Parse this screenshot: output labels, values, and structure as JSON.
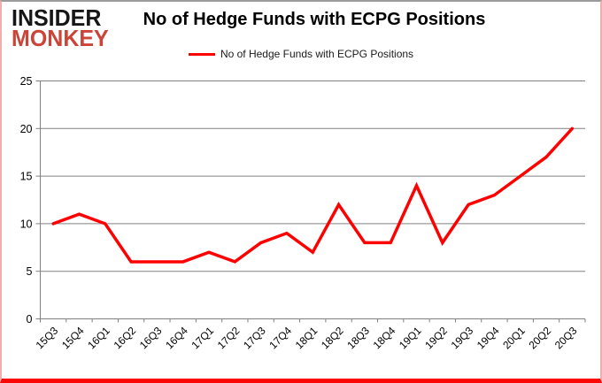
{
  "brand": {
    "line1": "INSIDER",
    "line2": "MONKEY",
    "monkey_color": "#cb4437",
    "insider_color": "#161616"
  },
  "header": {
    "title": "No of Hedge Funds with ECPG Positions"
  },
  "legend": {
    "label": "No of Hedge Funds with ECPG Positions",
    "line_color": "#ff0000"
  },
  "chart_data": {
    "type": "line",
    "title": "No of Hedge Funds with ECPG Positions",
    "categories": [
      "15Q3",
      "15Q4",
      "16Q1",
      "16Q2",
      "16Q3",
      "16Q4",
      "17Q1",
      "17Q2",
      "17Q3",
      "17Q4",
      "18Q1",
      "18Q2",
      "18Q3",
      "18Q4",
      "19Q1",
      "19Q2",
      "19Q3",
      "19Q4",
      "20Q1",
      "20Q2",
      "20Q3"
    ],
    "series": [
      {
        "name": "No of Hedge Funds with ECPG Positions",
        "color": "#ff0000",
        "values": [
          10,
          11,
          10,
          6,
          6,
          6,
          7,
          6,
          8,
          9,
          7,
          12,
          8,
          8,
          14,
          8,
          12,
          13,
          15,
          17,
          20
        ]
      }
    ],
    "xlabel": "",
    "ylabel": "",
    "ylim": [
      0,
      25
    ],
    "yticks": [
      0,
      5,
      10,
      15,
      20,
      25
    ],
    "grid": true,
    "legend_position": "top-center",
    "gridline_color": "#808080",
    "axis_color": "#808080",
    "tick_label_color": "#000000"
  },
  "frame": {
    "top_border_color": "#9b9b9b",
    "side_border_color": "#f0afac",
    "bottom_border_color": "#fb0505"
  }
}
